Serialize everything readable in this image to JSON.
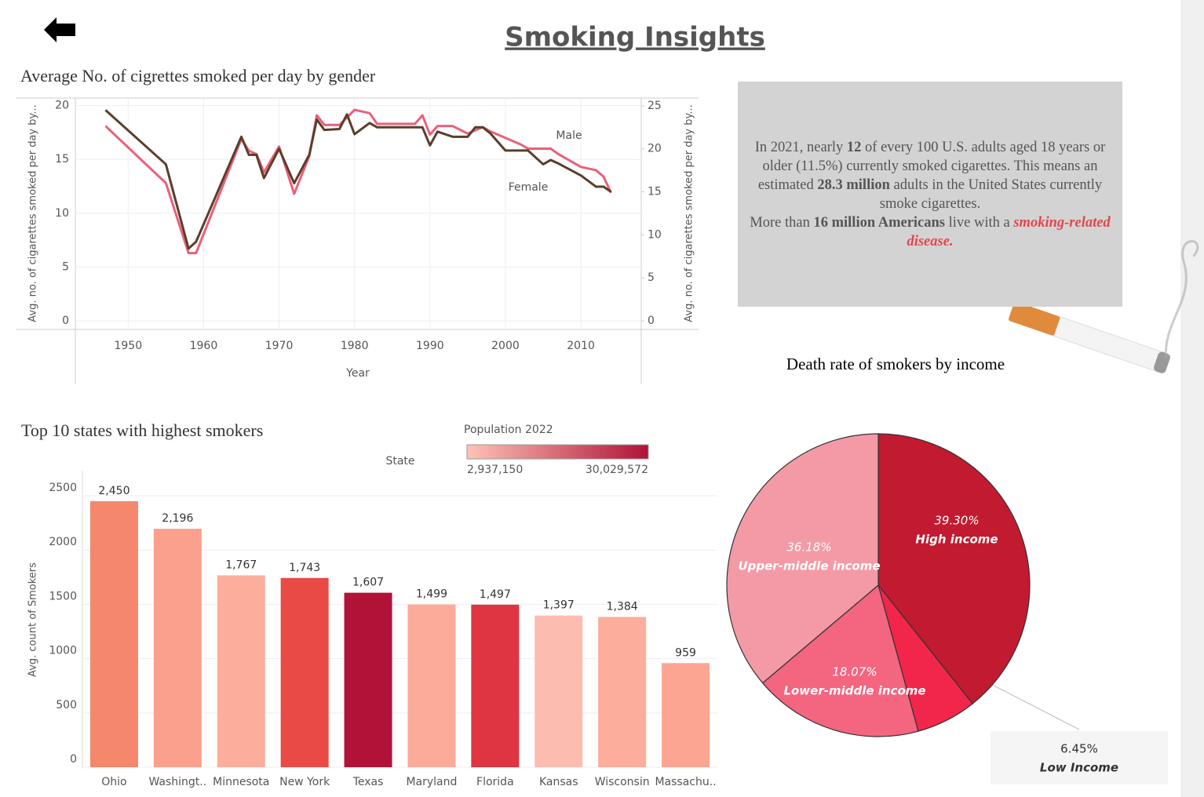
{
  "header": {
    "title": "Smoking Insights"
  },
  "info_box": {
    "paragraphs": [
      [
        {
          "text": "In 2021, nearly "
        },
        {
          "text": "12",
          "style": "bold"
        },
        {
          "text": " of every 100 U.S. adults aged 18 years or older (11.5%) currently  smoked cigarettes. This means an estimated "
        },
        {
          "text": "28.3 million",
          "style": "bold"
        },
        {
          "text": " adults in the United States currently smoke cigarettes."
        }
      ],
      [
        {
          "text": "More than "
        },
        {
          "text": "16 million Americans",
          "style": "bold"
        },
        {
          "text": " live with a "
        },
        {
          "text": "smoking-related disease.",
          "style": "highlight"
        }
      ]
    ]
  },
  "chart_data": [
    {
      "type": "line",
      "title": "Average No. of cigrettes smoked per day by gender",
      "x_label": "Year",
      "y_label": "Avg. no. of cigarettes smoked per day by...",
      "y2_label": "Avg. no. of cigarettes smoked per day by...",
      "x": [
        1947,
        1955,
        1958,
        1959,
        1965,
        1966,
        1967,
        1968,
        1970,
        1972,
        1974,
        1975,
        1976,
        1978,
        1979,
        1980,
        1982,
        1983,
        1988,
        1989,
        1990,
        1991,
        1993,
        1995,
        1996,
        1997,
        1998,
        2000,
        2002,
        2003,
        2005,
        2006,
        2007,
        2010,
        2012,
        2013,
        2014
      ],
      "series": [
        {
          "name": "Male",
          "color": "#e9607a",
          "axis": "y",
          "values": [
            18.1,
            12.8,
            6.3,
            6.3,
            16.9,
            15.8,
            15.5,
            13.8,
            16.2,
            11.8,
            15.3,
            19.1,
            18.2,
            18.2,
            18.9,
            19.6,
            19.3,
            18.3,
            18.3,
            19.1,
            17.3,
            18.1,
            18.1,
            17.4,
            17.7,
            18.0,
            17.6,
            17.0,
            16.4,
            16.0,
            16.0,
            16.0,
            15.5,
            14.3,
            14.0,
            13.4,
            11.9
          ]
        },
        {
          "name": "Female",
          "color": "#5a3e2b",
          "axis": "y2",
          "values": [
            24.5,
            18.2,
            8.4,
            9.2,
            21.4,
            19.3,
            19.3,
            16.6,
            20.0,
            16.0,
            19.3,
            23.4,
            22.2,
            22.3,
            24.0,
            21.7,
            23.0,
            22.5,
            22.5,
            22.5,
            20.4,
            22.0,
            21.4,
            21.4,
            22.5,
            22.5,
            21.8,
            19.8,
            19.8,
            19.8,
            18.2,
            18.7,
            18.3,
            16.9,
            15.6,
            15.6,
            15.0
          ]
        }
      ],
      "xlim": [
        1943,
        2018
      ],
      "xticks": [
        1950,
        1960,
        1970,
        1980,
        1990,
        2000,
        2010
      ],
      "ylim": [
        -0.8,
        20.7
      ],
      "yticks": [
        0,
        5,
        10,
        15,
        20
      ],
      "y2lim": [
        -1,
        25.9
      ],
      "y2ticks": [
        0,
        5,
        10,
        15,
        20,
        25
      ],
      "grid": true
    },
    {
      "type": "bar",
      "title": "Top 10 states with highest smokers",
      "y_label": "Avg. count of Smokers",
      "legend_label": "State",
      "categories": [
        "Ohio",
        "Washingt..",
        "Minnesota",
        "New York",
        "Texas",
        "Maryland",
        "Florida",
        "Kansas",
        "Wisconsin",
        "Massachu.."
      ],
      "values": [
        2450,
        2196,
        1767,
        1743,
        1607,
        1499,
        1497,
        1397,
        1384,
        959
      ],
      "value_labels": [
        "2,450",
        "2,196",
        "1,767",
        "1,743",
        "1,607",
        "1,499",
        "1,497",
        "1,397",
        "1,384",
        "959"
      ],
      "colors": [
        "#f4876c",
        "#fba08c",
        "#fcae9c",
        "#e94a45",
        "#b01238",
        "#fcab9b",
        "#df3442",
        "#fdbcb0",
        "#fcad9c",
        "#fca592"
      ],
      "color_legend": {
        "title": "Population 2022",
        "colors": [
          "#fdc3b6",
          "#b01238"
        ],
        "range": [
          {
            "value": 2937150,
            "label": "2,937,150"
          },
          {
            "value": 30029572,
            "label": "30,029,572"
          }
        ]
      },
      "ylim": [
        -14,
        2731
      ],
      "yticks": [
        0,
        500,
        1000,
        1500,
        2000,
        2500
      ],
      "grid": true
    },
    {
      "type": "pie",
      "title": "Death rate of smokers by income",
      "categories": [
        "High income",
        "Low Income",
        "Lower-middle income",
        "Upper-middle income"
      ],
      "values": [
        39.3,
        6.45,
        18.07,
        36.18
      ],
      "value_labels": [
        "39.30%",
        "6.45%",
        "18.07%",
        "36.18%"
      ],
      "colors": [
        "#c21a30",
        "#f2264a",
        "#f46580",
        "#f49aa6"
      ]
    }
  ]
}
